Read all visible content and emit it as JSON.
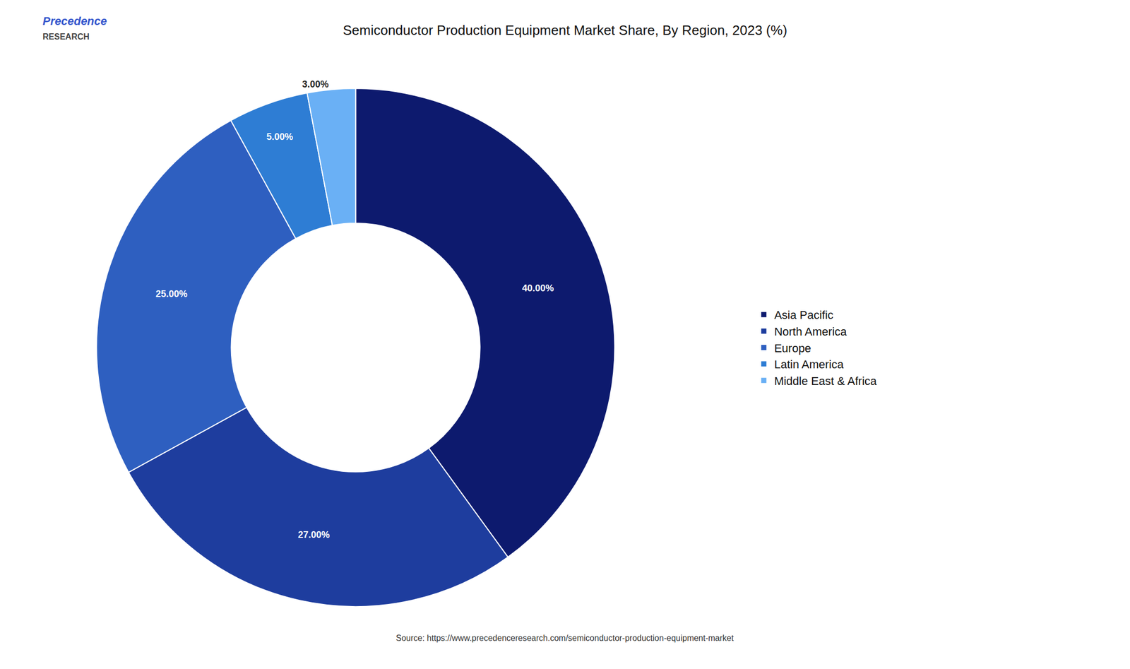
{
  "chart_data": {
    "type": "pie",
    "title": "Semiconductor Production Equipment Market Share, By Region, 2023 (%)",
    "annotations": [
      "Precedence",
      "RESEARCH",
      "Source: https://www.precedenceresearch.com/semiconductor-production-equipment-market"
    ],
    "categories": [
      "Asia Pacific",
      "North America",
      "Europe",
      "Latin America",
      "Middle East & Africa"
    ],
    "values": [
      40.0,
      27.0,
      25.0,
      5.0,
      3.0
    ],
    "value_labels": [
      "40.00%",
      "27.00%",
      "25.00%",
      "5.00%",
      "3.00%"
    ],
    "colors": [
      "#0d1a6e",
      "#1e3d9e",
      "#2e5fc0",
      "#2e7dd4",
      "#6ab0f5"
    ],
    "data_labels": true,
    "legend": "right"
  }
}
